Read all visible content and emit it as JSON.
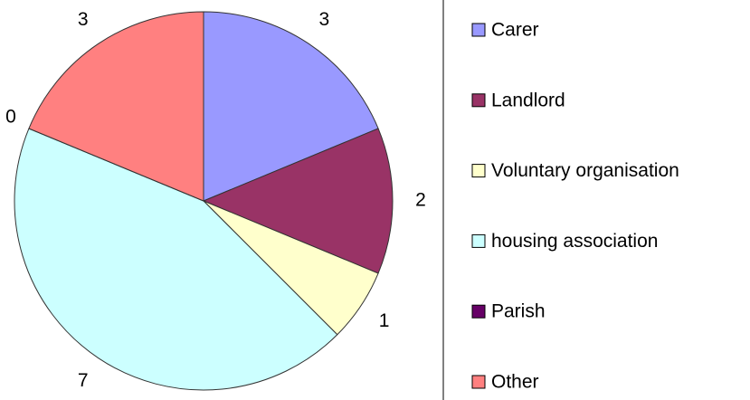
{
  "chart_data": {
    "type": "pie",
    "categories": [
      "Carer",
      "Landlord",
      "Voluntary organisation",
      "housing association",
      "Parish",
      "Other"
    ],
    "values": [
      3,
      2,
      1,
      7,
      0,
      3
    ],
    "colors": [
      "#9999ff",
      "#993366",
      "#ffffcc",
      "#ccffff",
      "#660066",
      "#ff8080"
    ],
    "legend": "right"
  }
}
